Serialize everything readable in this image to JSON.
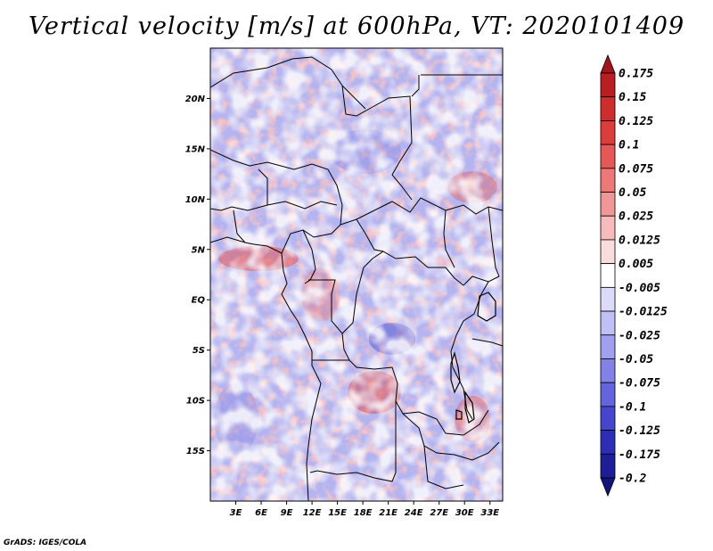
{
  "title": "Vertical velocity [m/s] at 600hPa, VT: 2020101409",
  "credit": "GrADS: IGES/COLA",
  "map": {
    "lat_labels": [
      "20N",
      "15N",
      "10N",
      "5N",
      "EQ",
      "5S",
      "10S",
      "15S"
    ],
    "lat_values": [
      20,
      15,
      10,
      5,
      0,
      -5,
      -10,
      -15
    ],
    "lon_labels": [
      "3E",
      "6E",
      "9E",
      "12E",
      "15E",
      "18E",
      "21E",
      "24E",
      "27E",
      "30E",
      "33E"
    ],
    "lon_values": [
      3,
      6,
      9,
      12,
      15,
      18,
      21,
      24,
      27,
      30,
      33
    ],
    "lon_range": [
      0,
      34.5
    ],
    "lat_range": [
      -20,
      25
    ]
  },
  "colorbar": {
    "labels": [
      "0.175",
      "0.15",
      "0.125",
      "0.1",
      "0.075",
      "0.05",
      "0.025",
      "0.0125",
      "0.005",
      "-0.005",
      "-0.0125",
      "-0.025",
      "-0.05",
      "-0.075",
      "-0.1",
      "-0.125",
      "-0.175",
      "-0.2"
    ],
    "colors": [
      "#a0141e",
      "#b91e23",
      "#cd2d2d",
      "#dc3c3c",
      "#e45858",
      "#ec7878",
      "#f09898",
      "#f6bcbc",
      "#fadcdc",
      "#ffffff",
      "#dcdcfa",
      "#c0c0f4",
      "#a0a0ee",
      "#8282e6",
      "#6464dc",
      "#4646cc",
      "#2e2eb4",
      "#1e1e96",
      "#14147a"
    ]
  }
}
